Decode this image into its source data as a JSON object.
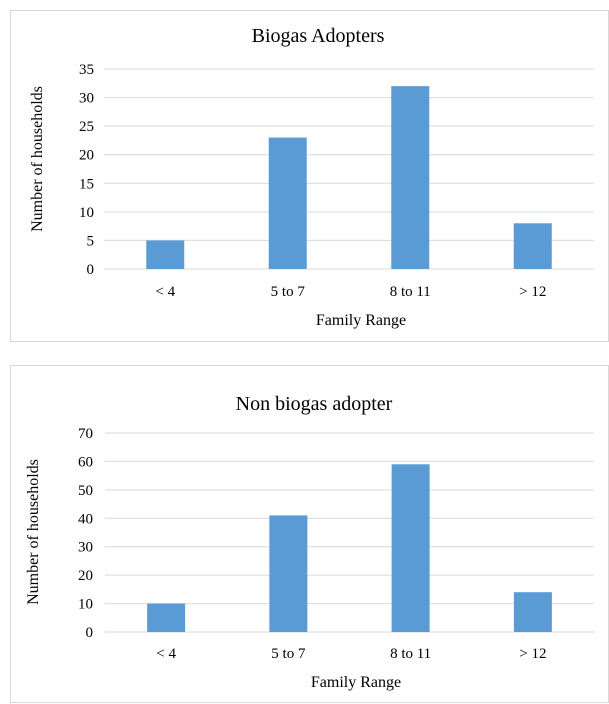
{
  "chart_data": [
    {
      "type": "bar",
      "title": "Biogas Adopters",
      "xlabel": "Family Range",
      "ylabel": "Number of households",
      "categories": [
        "< 4",
        "5 to 7",
        "8 to 11",
        "> 12"
      ],
      "values": [
        5,
        23,
        32,
        8
      ],
      "ylim": [
        0,
        35
      ],
      "yticks": [
        0,
        5,
        10,
        15,
        20,
        25,
        30,
        35
      ],
      "grid": true,
      "bar_color": "#5b9bd5",
      "grid_color": "#d9d9d9"
    },
    {
      "type": "bar",
      "title": "Non biogas adopter",
      "xlabel": "Family Range",
      "ylabel": "Number of households",
      "categories": [
        "< 4",
        "5 to 7",
        "8 to 11",
        "> 12"
      ],
      "values": [
        10,
        41,
        59,
        14
      ],
      "ylim": [
        0,
        70
      ],
      "yticks": [
        0,
        10,
        20,
        30,
        40,
        50,
        60,
        70
      ],
      "grid": true,
      "bar_color": "#5b9bd5",
      "grid_color": "#d9d9d9"
    }
  ]
}
